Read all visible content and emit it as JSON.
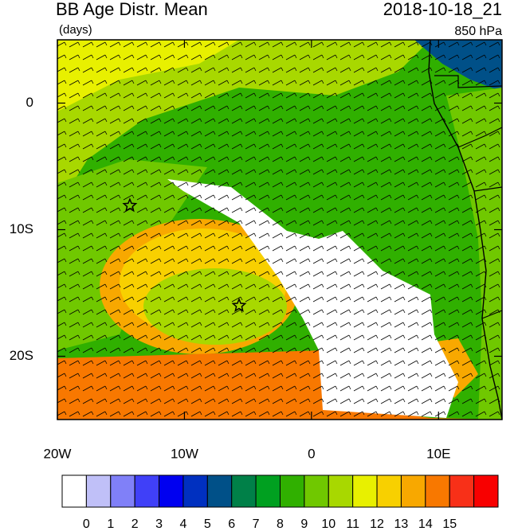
{
  "chart_data": {
    "type": "map",
    "title": "BB Age Distr. Mean",
    "subtitle": "(days)",
    "date": "2018-10-18_21",
    "level": "850 hPa",
    "xlim": [
      -20,
      15
    ],
    "ylim": [
      -25,
      5
    ],
    "xticks": [
      {
        "value": -20,
        "label": "20W"
      },
      {
        "value": -10,
        "label": "10W"
      },
      0,
      {
        "value": 10,
        "label": "10E"
      }
    ],
    "yticks": [
      0,
      {
        "value": -10,
        "label": "10S"
      },
      {
        "value": -20,
        "label": "20S"
      }
    ],
    "markers": {
      "lon": [
        -14.3,
        -5.7
      ],
      "lat": [
        -8.1,
        -16
      ]
    },
    "colorbar": {
      "levels": [
        0,
        1,
        2,
        3,
        4,
        5,
        6,
        7,
        8,
        9,
        10,
        11,
        12,
        13,
        14,
        15
      ],
      "colors": [
        "#ffffff",
        "#c0c0f8",
        "#8080f8",
        "#4040f8",
        "#0000f0",
        "#0030c0",
        "#005088",
        "#008048",
        "#00a020",
        "#30b000",
        "#70c800",
        "#a8d800",
        "#e8f000",
        "#f8d000",
        "#f8a800",
        "#f87800",
        "#f83018",
        "#f80000"
      ]
    }
  }
}
